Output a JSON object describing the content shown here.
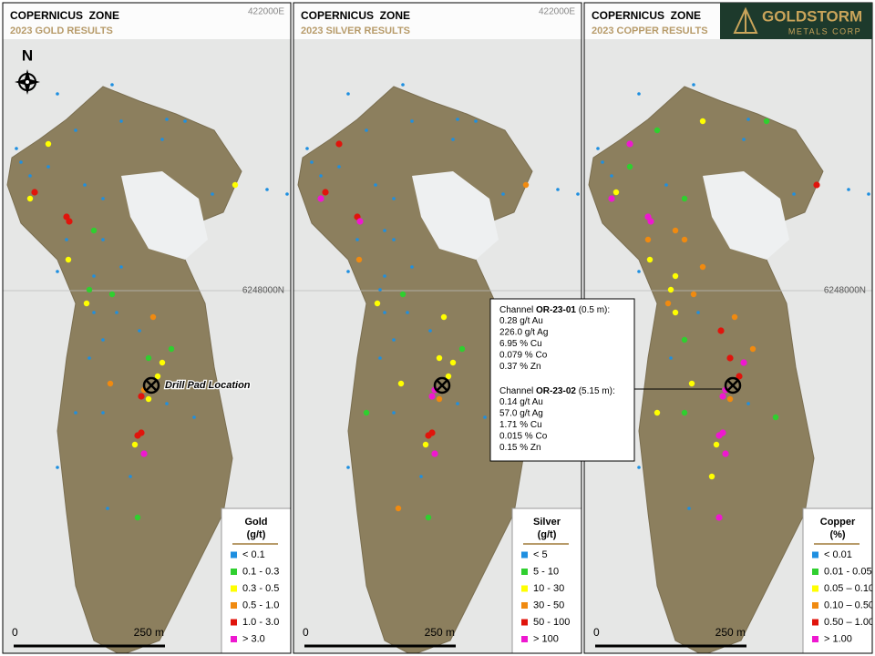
{
  "panels": [
    {
      "title": "COPERNICUS  ZONE",
      "subtitle": "2023 GOLD RESULTS",
      "easting": "422000E",
      "northing": "6248000N",
      "legend": {
        "title": "Gold",
        "unit": "(g/t)",
        "items": [
          "< 0.1",
          "0.1 - 0.3",
          "0.3 - 0.5",
          "0.5 - 1.0",
          "1.0 - 3.0",
          "> 3.0"
        ]
      },
      "scale": {
        "start": "0",
        "end": "250 m"
      }
    },
    {
      "title": "COPERNICUS  ZONE",
      "subtitle": "2023 SILVER RESULTS",
      "easting": "422000E",
      "legend": {
        "title": "Silver",
        "unit": "(g/t)",
        "items": [
          "< 5",
          "5 - 10",
          "10 - 30",
          "30 - 50",
          "50 - 100",
          "> 100"
        ]
      },
      "scale": {
        "start": "0",
        "end": "250 m"
      }
    },
    {
      "title": "COPERNICUS  ZONE",
      "subtitle": "2023 COPPER RESULTS",
      "northing": "6248000N",
      "legend": {
        "title": "Copper",
        "unit": "(%)",
        "items": [
          "< 0.01",
          "0.01 - 0.05",
          "0.05 – 0.10",
          "0.10 – 0.50",
          "0.50 – 1.00",
          "> 1.00"
        ]
      },
      "scale": {
        "start": "0",
        "end": "250 m"
      }
    }
  ],
  "north": "N",
  "drill_label": "Drill Pad Location",
  "callout": {
    "holes": [
      {
        "prefix": "Channel ",
        "id": "OR-23-01",
        "interval": " (0.5 m):",
        "assays": [
          "0.28 g/t Au",
          "226.0 g/t Ag",
          "6.95 % Cu",
          "0.079 % Co",
          "0.37 % Zn"
        ]
      },
      {
        "prefix": "Channel ",
        "id": "OR-23-02",
        "interval": " (5.15 m):",
        "assays": [
          "0.14 g/t Au",
          "57.0 g/t Ag",
          "1.71 % Cu",
          "0.015 % Co",
          "0.15 % Zn"
        ]
      }
    ]
  },
  "logo": {
    "name": "GOLDSTORM",
    "tagline": "METALS CORP"
  }
}
